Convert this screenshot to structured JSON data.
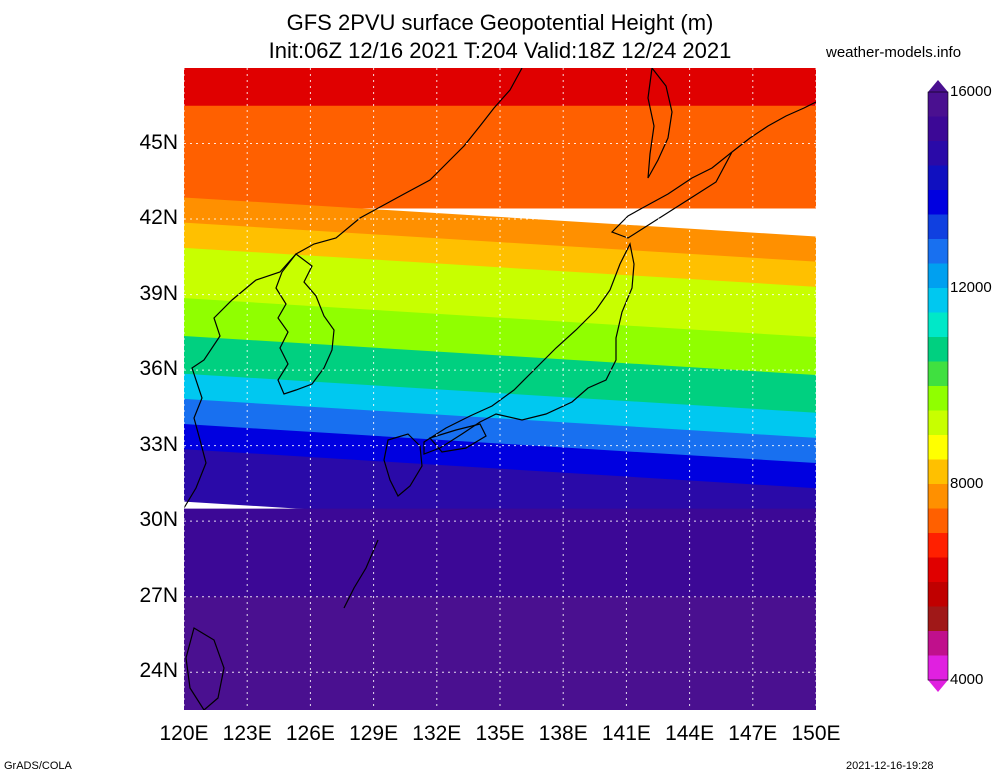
{
  "title": {
    "line1": "GFS 2PVU surface Geopotential Height (m)",
    "line2": "Init:06Z 12/16 2021 T:204 Valid:18Z 12/24 2021"
  },
  "site": "weather-models.info",
  "footer": {
    "left": "GrADS/COLA",
    "right": "2021-12-16-19:28"
  },
  "map": {
    "lon_range": [
      120,
      150
    ],
    "lat_range": [
      22.5,
      48
    ],
    "lat_labels": [
      "45N",
      "42N",
      "39N",
      "36N",
      "33N",
      "30N",
      "27N",
      "24N"
    ],
    "lat_values": [
      45,
      42,
      39,
      36,
      33,
      30,
      27,
      24
    ],
    "lon_labels": [
      "120E",
      "123E",
      "126E",
      "129E",
      "132E",
      "135E",
      "138E",
      "141E",
      "144E",
      "147E",
      "150E"
    ],
    "lon_values": [
      120,
      123,
      126,
      129,
      132,
      135,
      138,
      141,
      144,
      147,
      150
    ],
    "field_bands_lat_to_m": [
      [
        48,
        6000
      ],
      [
        46.5,
        7000
      ],
      [
        44.5,
        7200
      ],
      [
        42.5,
        7600
      ],
      [
        41.5,
        8200
      ],
      [
        40.5,
        9000
      ],
      [
        38.5,
        9800
      ],
      [
        37,
        10500
      ],
      [
        35.5,
        11500
      ],
      [
        34.5,
        12500
      ],
      [
        33.5,
        13500
      ],
      [
        32.5,
        14500
      ],
      [
        30.5,
        15200
      ],
      [
        27,
        15600
      ],
      [
        22.5,
        15800
      ]
    ]
  },
  "colorbar": {
    "min": 4000,
    "max": 16000,
    "labels": [
      "16000",
      "12000",
      "8000",
      "4000"
    ],
    "label_values": [
      16000,
      12000,
      8000,
      4000
    ],
    "colors": [
      "#e020e0",
      "#c0108c",
      "#a01818",
      "#c00000",
      "#e00000",
      "#ff2000",
      "#ff6000",
      "#ff9000",
      "#ffc000",
      "#ffff00",
      "#c8ff00",
      "#90ff00",
      "#40e040",
      "#00d080",
      "#00e8c8",
      "#00c8f0",
      "#00a0f0",
      "#1870f0",
      "#1040e0",
      "#0000e0",
      "#1010c0",
      "#2a0aa8",
      "#3c0896",
      "#4a1090"
    ]
  }
}
